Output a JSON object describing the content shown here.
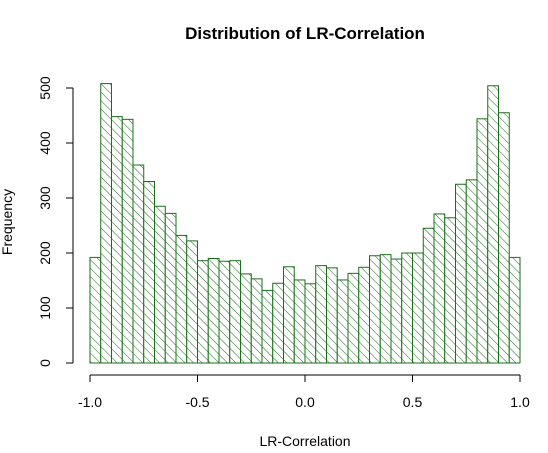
{
  "chart_data": {
    "type": "bar",
    "title": "Distribution of LR-Correlation",
    "xlabel": "LR-Correlation",
    "ylabel": "Frequency",
    "xlim": [
      -1.0,
      1.0
    ],
    "ylim": [
      0,
      500
    ],
    "x_ticks": [
      -1.0,
      -0.5,
      0.0,
      0.5,
      1.0
    ],
    "x_tick_labels": [
      "-1.0",
      "-0.5",
      "0.0",
      "0.5",
      "1.0"
    ],
    "y_ticks": [
      0,
      100,
      200,
      300,
      400,
      500
    ],
    "y_tick_labels": [
      "0",
      "100",
      "200",
      "300",
      "400",
      "500"
    ],
    "bin_start": -1.0,
    "bin_width": 0.05,
    "counts": [
      192,
      508,
      448,
      443,
      360,
      330,
      285,
      272,
      232,
      222,
      186,
      190,
      185,
      186,
      162,
      153,
      132,
      145,
      175,
      151,
      144,
      177,
      173,
      151,
      163,
      174,
      195,
      197,
      189,
      200,
      200,
      245,
      271,
      264,
      325,
      333,
      444,
      504,
      455,
      192
    ],
    "bar_fill": "hatched",
    "bar_color": "#1a6e1a",
    "grid": false,
    "legend": "none"
  }
}
